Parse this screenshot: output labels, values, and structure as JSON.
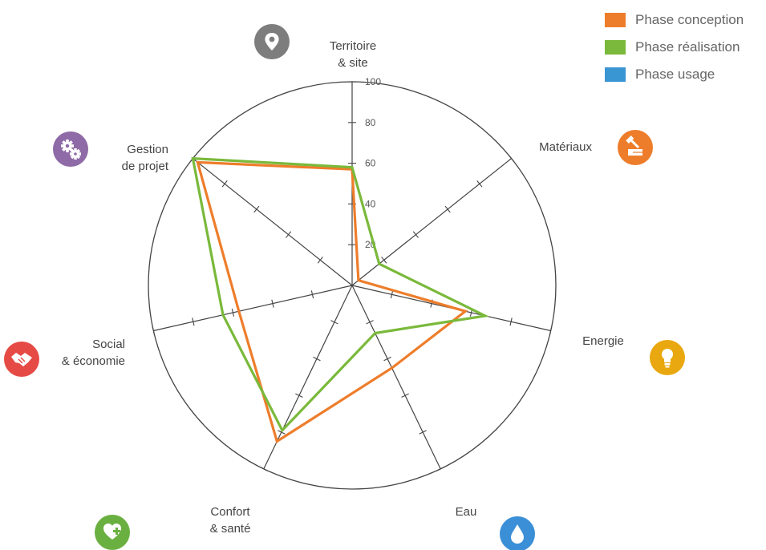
{
  "chart_data": {
    "type": "radar",
    "axes": [
      {
        "label_lines": [
          "Territoire",
          "& site"
        ],
        "icon": "map-pin-icon",
        "icon_color": "#7d7d7d"
      },
      {
        "label_lines": [
          "Matériaux"
        ],
        "icon": "tools-icon",
        "icon_color": "#ee7d2b"
      },
      {
        "label_lines": [
          "Energie"
        ],
        "icon": "lightbulb-icon",
        "icon_color": "#e9a80f"
      },
      {
        "label_lines": [
          "Eau"
        ],
        "icon": "water-drop-icon",
        "icon_color": "#3a8fd6"
      },
      {
        "label_lines": [
          "Confort",
          "& santé"
        ],
        "icon": "heart-plus-icon",
        "icon_color": "#6ab041"
      },
      {
        "label_lines": [
          "Social",
          "& économie"
        ],
        "icon": "handshake-icon",
        "icon_color": "#e64a45"
      },
      {
        "label_lines": [
          "Gestion",
          "de projet"
        ],
        "icon": "gears-icon",
        "icon_color": "#8e6aa6"
      }
    ],
    "rlim": [
      0,
      100
    ],
    "ticks": [
      "20",
      "40",
      "60",
      "80",
      "100"
    ],
    "series": [
      {
        "name": "Phase conception",
        "color": "#ee7d2b",
        "values": [
          57,
          4,
          57,
          45,
          85,
          57,
          97
        ]
      },
      {
        "name": "Phase réalisation",
        "color": "#7ab93b",
        "values": [
          58,
          17,
          67,
          26,
          79,
          65,
          100
        ]
      },
      {
        "name": "Phase usage",
        "color": "#3a95d3",
        "values": []
      }
    ],
    "legend_position": "top-right"
  }
}
